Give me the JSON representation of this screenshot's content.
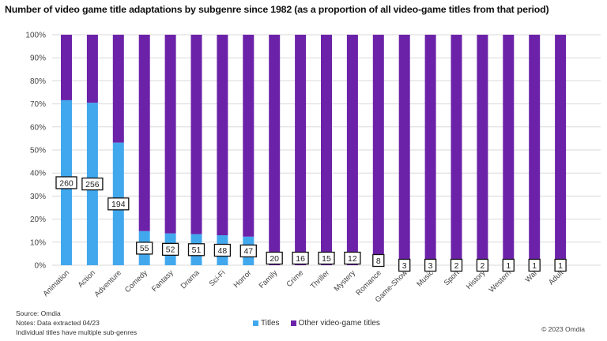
{
  "chart_data": {
    "type": "bar",
    "stacked": true,
    "percent_stacked": true,
    "title": "Number of video game title adaptations by subgenre since 1982 (as a proportion of all video-game titles from that period)",
    "xlabel": "",
    "ylabel": "",
    "ylim": [
      0,
      100
    ],
    "yticks": [
      "0%",
      "10%",
      "20%",
      "30%",
      "40%",
      "50%",
      "60%",
      "70%",
      "80%",
      "90%",
      "100%"
    ],
    "grid": true,
    "legend_position": "bottom",
    "categories": [
      "Animation",
      "Action",
      "Adventure",
      "Comedy",
      "Fantasy",
      "Drama",
      "Sci-Fi",
      "Horror",
      "Family",
      "Crime",
      "Thriller",
      "Mystery",
      "Romance",
      "Game-Show",
      "Music",
      "Sport",
      "History",
      "Western",
      "War",
      "Adult"
    ],
    "series": [
      {
        "name": "Titles",
        "color": "#41a8ee",
        "values": [
          71.6,
          70.5,
          53.2,
          14.8,
          13.8,
          13.5,
          13.0,
          12.4,
          0,
          0,
          0,
          0,
          0,
          0,
          0,
          0,
          0,
          0,
          0,
          0
        ]
      },
      {
        "name": "Other video-game titles",
        "color": "#6b22a8",
        "values": [
          28.4,
          29.5,
          46.8,
          85.2,
          86.2,
          86.5,
          87.0,
          87.6,
          100,
          100,
          100,
          100,
          100,
          100,
          100,
          100,
          100,
          100,
          100,
          100
        ]
      }
    ],
    "data_labels": [
      260,
      256,
      194,
      55,
      52,
      51,
      48,
      47,
      20,
      16,
      15,
      12,
      8,
      3,
      3,
      2,
      2,
      1,
      1,
      1
    ]
  },
  "footer": {
    "source": "Source: Omdia",
    "notes": "Notes: Data extracted 04/23",
    "note2": "Individual titles have multiple sub-genres",
    "copyright": "© 2023 Omdia"
  }
}
